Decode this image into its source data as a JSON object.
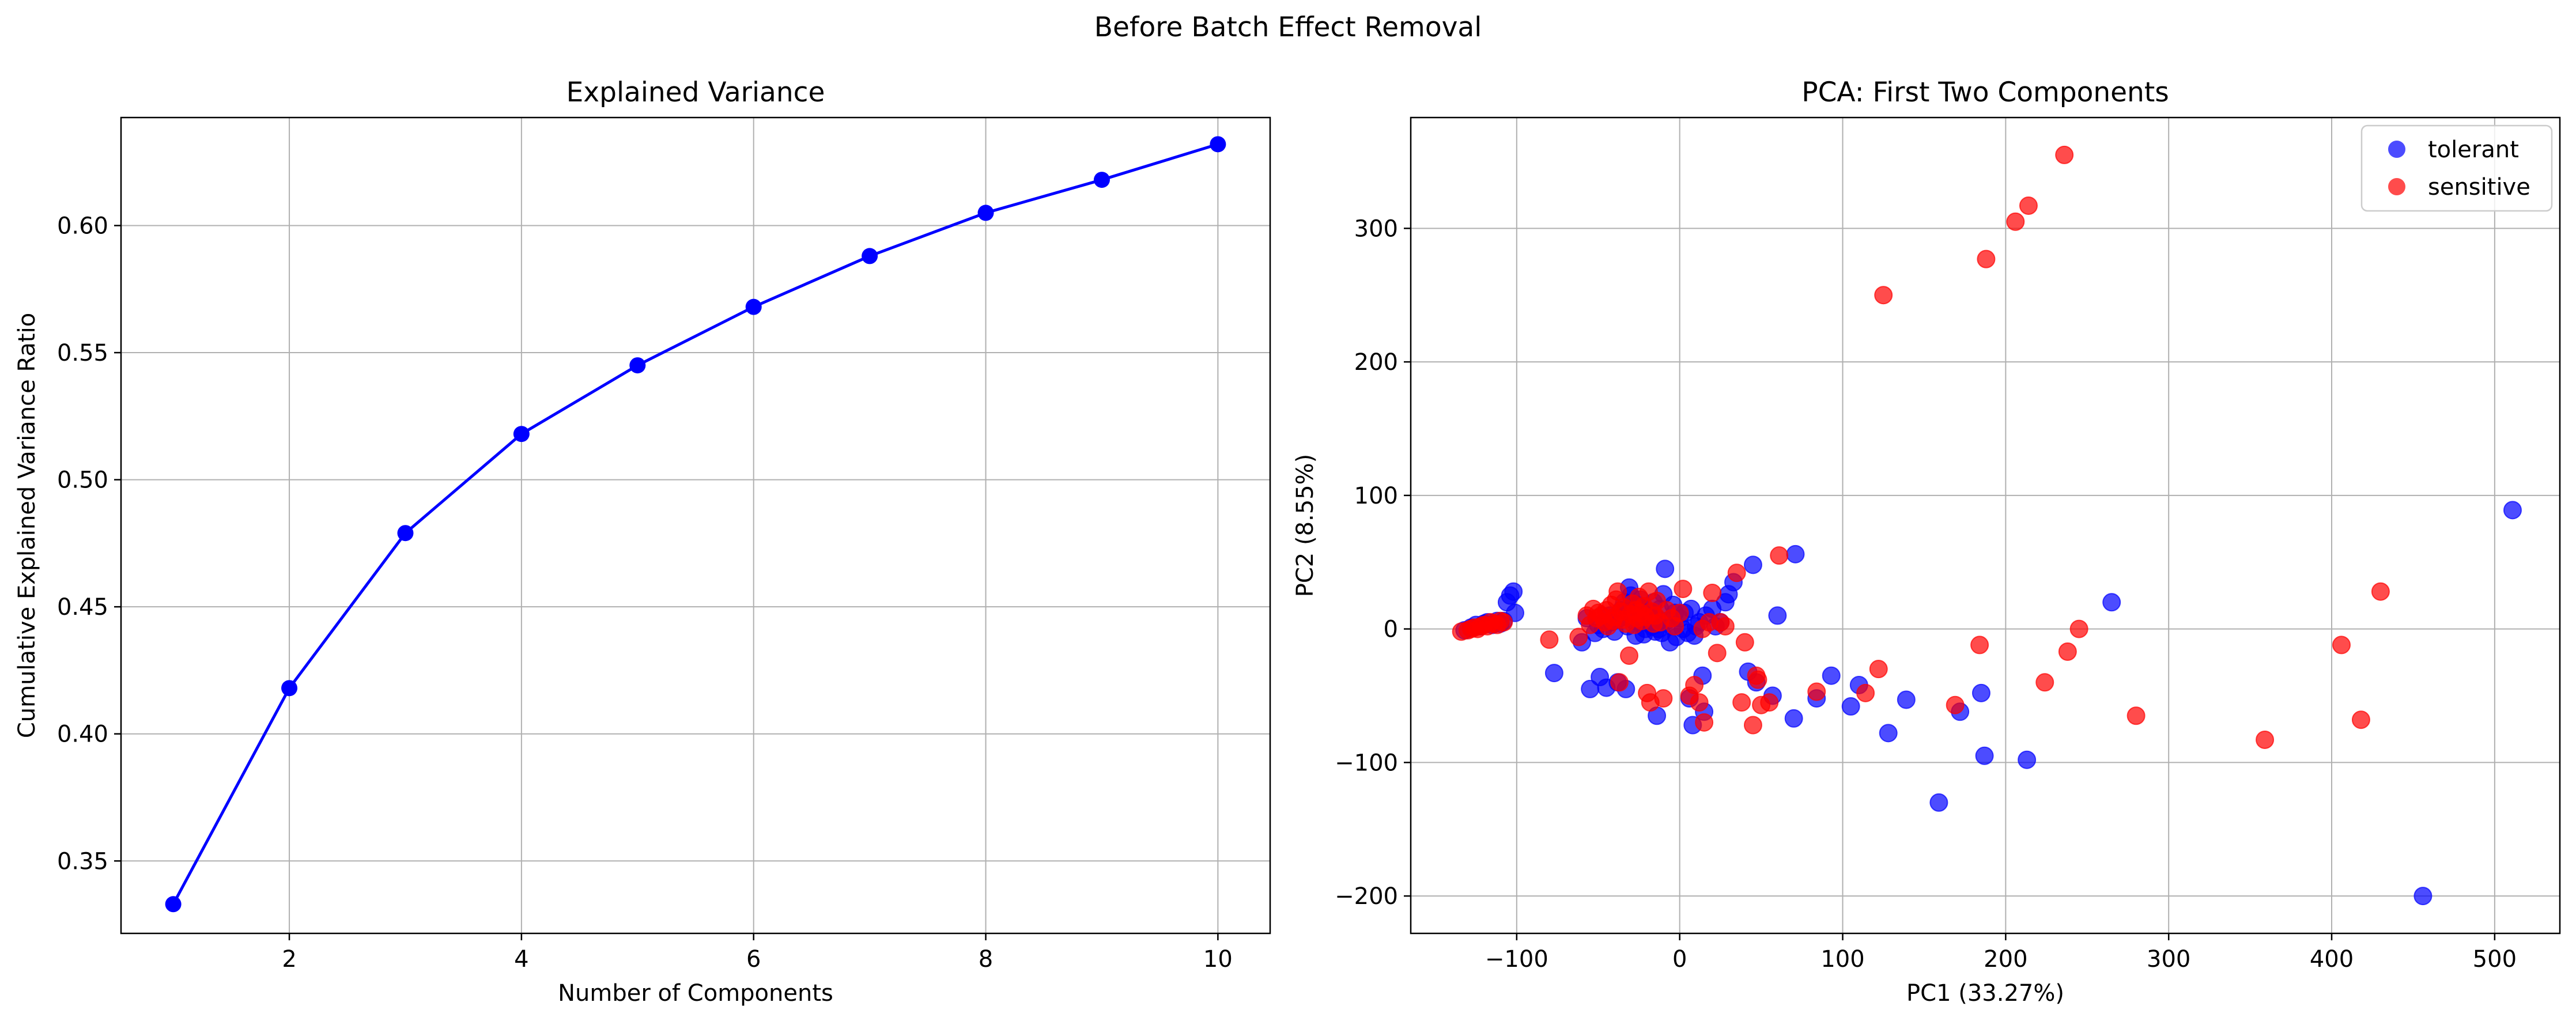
{
  "suptitle": "Before Batch Effect Removal",
  "colors": {
    "line": "#0000ff",
    "tolerant": "#0000ff",
    "sensitive": "#ff0000",
    "grid": "#b0b0b0",
    "axes": "#000000"
  },
  "chart_data": [
    {
      "type": "line",
      "title": "Explained Variance",
      "xlabel": "Number of Components",
      "ylabel": "Cumulative Explained Variance Ratio",
      "xlim": [
        0.55,
        10.45
      ],
      "ylim": [
        0.3215,
        0.6425
      ],
      "xticks": [
        2,
        4,
        6,
        8,
        10
      ],
      "xtick_labels": [
        "2",
        "4",
        "6",
        "8",
        "10"
      ],
      "yticks": [
        0.35,
        0.4,
        0.45,
        0.5,
        0.55,
        0.6
      ],
      "ytick_labels": [
        "0.35",
        "0.40",
        "0.45",
        "0.50",
        "0.55",
        "0.60"
      ],
      "grid": true,
      "marker": "circle",
      "x": [
        1,
        2,
        3,
        4,
        5,
        6,
        7,
        8,
        9,
        10
      ],
      "y": [
        0.333,
        0.418,
        0.479,
        0.518,
        0.545,
        0.568,
        0.588,
        0.605,
        0.618,
        0.632
      ]
    },
    {
      "type": "scatter",
      "title": "PCA: First Two Components",
      "xlabel": "PC1 (33.27%)",
      "ylabel": "PC2 (8.55%)",
      "xlim": [
        -165,
        540
      ],
      "ylim": [
        -228,
        383
      ],
      "xticks": [
        -100,
        0,
        100,
        200,
        300,
        400,
        500
      ],
      "xtick_labels": [
        "−100",
        "0",
        "100",
        "200",
        "300",
        "400",
        "500"
      ],
      "yticks": [
        -200,
        -100,
        0,
        100,
        200,
        300
      ],
      "ytick_labels": [
        "−200",
        "−100",
        "0",
        "100",
        "200",
        "300"
      ],
      "grid": true,
      "legend_placement": "top-right",
      "series": [
        {
          "name": "tolerant",
          "color_key": "tolerant",
          "points": [
            [
              -132,
              -1
            ],
            [
              -128,
              1
            ],
            [
              -125,
              3
            ],
            [
              -122,
              2
            ],
            [
              -120,
              4
            ],
            [
              -118,
              5
            ],
            [
              -115,
              3
            ],
            [
              -112,
              6
            ],
            [
              -110,
              4
            ],
            [
              -108,
              6
            ],
            [
              -106,
              20
            ],
            [
              -104,
              25
            ],
            [
              -102,
              28
            ],
            [
              -101,
              12
            ],
            [
              -77,
              -33
            ],
            [
              -60,
              -10
            ],
            [
              -57,
              8
            ],
            [
              -55,
              -45
            ],
            [
              -52,
              -3
            ],
            [
              -50,
              3
            ],
            [
              -49,
              -36
            ],
            [
              -47,
              0
            ],
            [
              -45,
              -44
            ],
            [
              -43,
              10
            ],
            [
              -42,
              5
            ],
            [
              -40,
              -2
            ],
            [
              -38,
              -40
            ],
            [
              -37,
              8
            ],
            [
              -36,
              14
            ],
            [
              -34,
              20
            ],
            [
              -33,
              -45
            ],
            [
              -32,
              2
            ],
            [
              -31,
              31
            ],
            [
              -30,
              25
            ],
            [
              -29,
              12
            ],
            [
              -28,
              6
            ],
            [
              -27,
              -5
            ],
            [
              -26,
              18
            ],
            [
              -25,
              15
            ],
            [
              -24,
              22
            ],
            [
              -23,
              8
            ],
            [
              -22,
              -4
            ],
            [
              -21,
              0
            ],
            [
              -20,
              5
            ],
            [
              -19,
              10
            ],
            [
              -18,
              12
            ],
            [
              -17,
              2
            ],
            [
              -16,
              20
            ],
            [
              -15,
              -2
            ],
            [
              -14,
              8
            ],
            [
              -13,
              0
            ],
            [
              -12,
              15
            ],
            [
              -11,
              -3
            ],
            [
              -10,
              26
            ],
            [
              -9,
              45
            ],
            [
              -8,
              6
            ],
            [
              -6,
              -10
            ],
            [
              -5,
              2
            ],
            [
              -4,
              18
            ],
            [
              -3,
              12
            ],
            [
              -2,
              -6
            ],
            [
              0,
              8
            ],
            [
              2,
              0
            ],
            [
              3,
              12
            ],
            [
              5,
              -3
            ],
            [
              6,
              -52
            ],
            [
              7,
              15
            ],
            [
              9,
              -5
            ],
            [
              10,
              2
            ],
            [
              12,
              5
            ],
            [
              14,
              -35
            ],
            [
              15,
              -62
            ],
            [
              16,
              10
            ],
            [
              20,
              15
            ],
            [
              22,
              2
            ],
            [
              25,
              5
            ],
            [
              28,
              20
            ],
            [
              30,
              26
            ],
            [
              33,
              35
            ],
            [
              42,
              -32
            ],
            [
              45,
              48
            ],
            [
              47,
              -40
            ],
            [
              57,
              -50
            ],
            [
              60,
              10
            ],
            [
              70,
              -67
            ],
            [
              71,
              56
            ],
            [
              84,
              -52
            ],
            [
              93,
              -35
            ],
            [
              105,
              -58
            ],
            [
              110,
              -42
            ],
            [
              128,
              -78
            ],
            [
              139,
              -53
            ],
            [
              159,
              -130
            ],
            [
              172,
              -62
            ],
            [
              185,
              -48
            ],
            [
              187,
              -95
            ],
            [
              213,
              -98
            ],
            [
              265,
              20
            ],
            [
              456,
              -200
            ],
            [
              511,
              89
            ],
            [
              8,
              -72
            ],
            [
              -14,
              -65
            ]
          ]
        },
        {
          "name": "sensitive",
          "color_key": "sensitive",
          "points": [
            [
              -134,
              -2
            ],
            [
              -130,
              -1
            ],
            [
              -128,
              0
            ],
            [
              -126,
              1
            ],
            [
              -124,
              0
            ],
            [
              -122,
              2
            ],
            [
              -120,
              3
            ],
            [
              -118,
              2
            ],
            [
              -116,
              5
            ],
            [
              -114,
              4
            ],
            [
              -112,
              3
            ],
            [
              -110,
              6
            ],
            [
              -108,
              5
            ],
            [
              -80,
              -8
            ],
            [
              -62,
              -6
            ],
            [
              -57,
              10
            ],
            [
              -55,
              3
            ],
            [
              -53,
              15
            ],
            [
              -51,
              8
            ],
            [
              -50,
              12
            ],
            [
              -48,
              10
            ],
            [
              -46,
              5
            ],
            [
              -45,
              14
            ],
            [
              -44,
              2
            ],
            [
              -42,
              18
            ],
            [
              -41,
              6
            ],
            [
              -40,
              9
            ],
            [
              -39,
              22
            ],
            [
              -38,
              28
            ],
            [
              -37,
              -40
            ],
            [
              -36,
              13
            ],
            [
              -35,
              7
            ],
            [
              -34,
              16
            ],
            [
              -33,
              4
            ],
            [
              -31,
              -20
            ],
            [
              -30,
              11
            ],
            [
              -29,
              19
            ],
            [
              -28,
              3
            ],
            [
              -27,
              14
            ],
            [
              -26,
              8
            ],
            [
              -25,
              24
            ],
            [
              -24,
              12
            ],
            [
              -23,
              6
            ],
            [
              -22,
              17
            ],
            [
              -21,
              9
            ],
            [
              -20,
              -48
            ],
            [
              -19,
              28
            ],
            [
              -18,
              -55
            ],
            [
              -17,
              13
            ],
            [
              -16,
              4
            ],
            [
              -15,
              10
            ],
            [
              -14,
              21
            ],
            [
              -12,
              5
            ],
            [
              -10,
              -52
            ],
            [
              -8,
              14
            ],
            [
              -5,
              8
            ],
            [
              -3,
              2
            ],
            [
              0,
              12
            ],
            [
              2,
              30
            ],
            [
              6,
              -50
            ],
            [
              9,
              -42
            ],
            [
              12,
              -55
            ],
            [
              14,
              0
            ],
            [
              15,
              -70
            ],
            [
              18,
              5
            ],
            [
              20,
              27
            ],
            [
              23,
              -18
            ],
            [
              25,
              5
            ],
            [
              28,
              2
            ],
            [
              35,
              42
            ],
            [
              38,
              -55
            ],
            [
              40,
              -10
            ],
            [
              45,
              -72
            ],
            [
              47,
              -35
            ],
            [
              50,
              -57
            ],
            [
              55,
              -55
            ],
            [
              61,
              55
            ],
            [
              84,
              -47
            ],
            [
              114,
              -48
            ],
            [
              122,
              -30
            ],
            [
              125,
              250
            ],
            [
              169,
              -57
            ],
            [
              184,
              -12
            ],
            [
              188,
              277
            ],
            [
              206,
              305
            ],
            [
              214,
              317
            ],
            [
              224,
              -40
            ],
            [
              236,
              355
            ],
            [
              238,
              -17
            ],
            [
              245,
              0
            ],
            [
              280,
              -65
            ],
            [
              359,
              -83
            ],
            [
              406,
              -12
            ],
            [
              418,
              -68
            ],
            [
              430,
              28
            ],
            [
              48,
              -38
            ]
          ]
        }
      ]
    }
  ]
}
